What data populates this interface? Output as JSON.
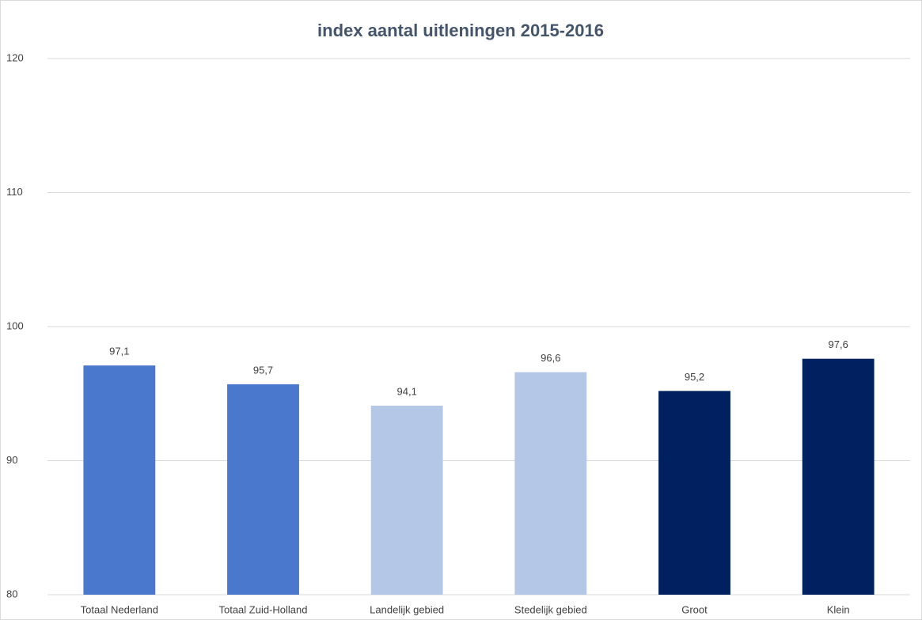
{
  "chart_data": {
    "type": "bar",
    "title": "index aantal uitleningen 2015-2016",
    "categories": [
      "Totaal Nederland",
      "Totaal Zuid-Holland",
      "Landelijk gebied",
      "Stedelijk gebied",
      "Groot",
      "Klein"
    ],
    "values": [
      97.1,
      95.7,
      94.1,
      96.6,
      95.2,
      97.6
    ],
    "value_labels": [
      "97,1",
      "95,7",
      "94,1",
      "96,6",
      "95,2",
      "97,6"
    ],
    "colors": [
      "#4a78cc",
      "#4a78cc",
      "#b4c7e7",
      "#b4c7e7",
      "#002060",
      "#002060"
    ],
    "ylim": [
      80,
      120
    ],
    "yticks": [
      80,
      90,
      100,
      110,
      120
    ],
    "grid": true
  }
}
